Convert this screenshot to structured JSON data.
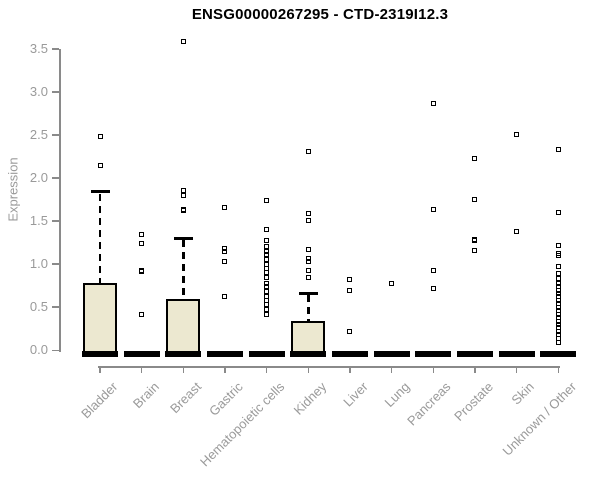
{
  "chart_data": {
    "type": "box",
    "title": "ENSG00000267295 - CTD-2319I12.3",
    "xlabel": "",
    "ylabel": "Expression",
    "ylim": [
      0,
      3.6
    ],
    "grid": false,
    "legend": "none",
    "ytick_labels": [
      "0.0",
      "0.5",
      "1.0",
      "1.5",
      "2.0",
      "2.5",
      "3.0",
      "3.5"
    ],
    "categories": [
      {
        "label": "Bladder",
        "q1": 0,
        "median": 0,
        "q3": 0.78,
        "whisker_low": 0,
        "whisker_high": 1.84,
        "outliers": [
          2.15,
          2.48
        ]
      },
      {
        "label": "Brain",
        "q1": 0,
        "median": 0,
        "q3": 0,
        "whisker_low": 0,
        "whisker_high": 0,
        "outliers": [
          0.42,
          0.92,
          0.93,
          1.24,
          1.34
        ]
      },
      {
        "label": "Breast",
        "q1": 0,
        "median": 0,
        "q3": 0.6,
        "whisker_low": 0,
        "whisker_high": 1.3,
        "outliers": [
          1.62,
          1.64,
          1.8,
          1.86,
          3.58
        ]
      },
      {
        "label": "Gastric",
        "q1": 0,
        "median": 0,
        "q3": 0,
        "whisker_low": 0,
        "whisker_high": 0,
        "outliers": [
          0.62,
          1.03,
          1.15,
          1.18,
          1.66
        ]
      },
      {
        "label": "Hematopoietic cells",
        "q1": 0,
        "median": 0,
        "q3": 0,
        "whisker_low": 0,
        "whisker_high": 0,
        "outliers": [
          0.41,
          0.47,
          0.53,
          0.58,
          0.63,
          0.68,
          0.74,
          0.78,
          0.84,
          0.9,
          0.95,
          1.0,
          1.05,
          1.11,
          1.15,
          1.2,
          1.27,
          1.4,
          1.74
        ]
      },
      {
        "label": "Kidney",
        "q1": 0,
        "median": 0,
        "q3": 0.34,
        "whisker_low": 0,
        "whisker_high": 0.66,
        "outliers": [
          0.85,
          0.93,
          1.03,
          1.07,
          1.17,
          1.51,
          1.59,
          2.31
        ]
      },
      {
        "label": "Liver",
        "q1": 0,
        "median": 0,
        "q3": 0,
        "whisker_low": 0,
        "whisker_high": 0,
        "outliers": [
          0.22,
          0.7,
          0.82
        ]
      },
      {
        "label": "Lung",
        "q1": 0,
        "median": 0,
        "q3": 0,
        "whisker_low": 0,
        "whisker_high": 0,
        "outliers": [
          0.77
        ]
      },
      {
        "label": "Pancreas",
        "q1": 0,
        "median": 0,
        "q3": 0,
        "whisker_low": 0,
        "whisker_high": 0,
        "outliers": [
          0.72,
          0.93,
          1.63,
          2.86
        ]
      },
      {
        "label": "Prostate",
        "q1": 0,
        "median": 0,
        "q3": 0,
        "whisker_low": 0,
        "whisker_high": 0,
        "outliers": [
          1.16,
          1.27,
          1.29,
          1.75,
          2.23
        ]
      },
      {
        "label": "Skin",
        "q1": 0,
        "median": 0,
        "q3": 0,
        "whisker_low": 0,
        "whisker_high": 0,
        "outliers": [
          1.38,
          2.5
        ]
      },
      {
        "label": "Unknown / Other",
        "q1": 0,
        "median": 0,
        "q3": 0,
        "whisker_low": 0,
        "whisker_high": 0,
        "outliers": [
          0.09,
          0.14,
          0.18,
          0.22,
          0.26,
          0.3,
          0.34,
          0.38,
          0.42,
          0.46,
          0.5,
          0.54,
          0.58,
          0.62,
          0.66,
          0.7,
          0.74,
          0.78,
          0.83,
          0.89,
          0.97,
          1.1,
          1.12,
          1.22,
          1.6,
          2.33
        ]
      }
    ],
    "colors": {
      "box_fill": "#ece8d0",
      "box_border": "#000000",
      "median": "#000000",
      "axis": "#8a8a8a",
      "tick_text": "#9a9a9a",
      "title_text": "#000000"
    }
  }
}
